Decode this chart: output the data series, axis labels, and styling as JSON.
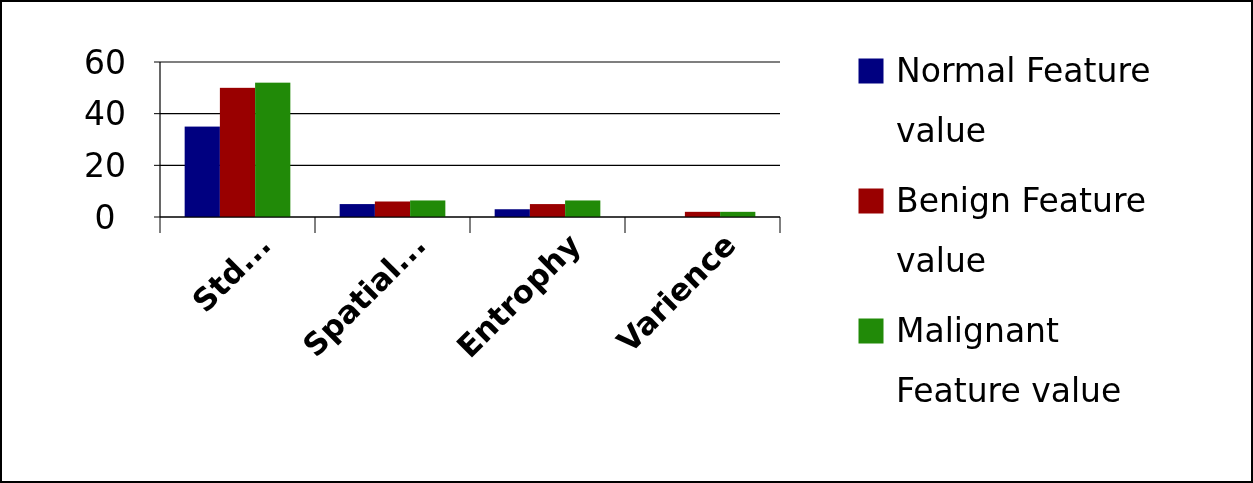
{
  "chart_data": {
    "type": "bar",
    "categories": [
      "Std...",
      "Spatial...",
      "Entrophy",
      "Varience"
    ],
    "series": [
      {
        "name": "Normal Feature value",
        "color": "#000080",
        "values": [
          35,
          5,
          3,
          0
        ]
      },
      {
        "name": "Benign Feature value",
        "color": "#990000",
        "values": [
          50,
          6,
          5,
          2
        ]
      },
      {
        "name": "Malignant Feature value",
        "color": "#218a08",
        "values": [
          52,
          6.4,
          6.4,
          2
        ]
      }
    ],
    "ylim": [
      0,
      60
    ],
    "yticks": [
      0,
      20,
      40,
      60
    ],
    "grid": "y",
    "legend": "right"
  }
}
